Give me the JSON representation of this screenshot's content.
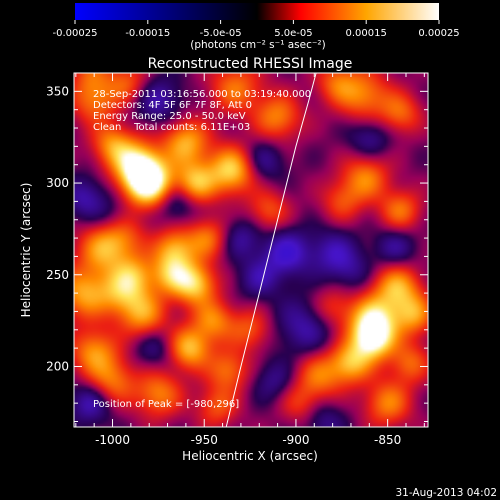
{
  "colorbar": {
    "ticks": [
      "-0.00025",
      "-0.00015",
      "-5.0e-05",
      "5.0e-05",
      "0.00015",
      "0.00025"
    ],
    "tick_values": [
      -0.00025,
      -0.00015,
      -5e-05,
      5e-05,
      0.00015,
      0.00025
    ],
    "range": [
      -0.00025,
      0.00025
    ],
    "units_label": "(photons cm⁻² s⁻¹ asec⁻²)",
    "colors": [
      "#0000ff",
      "#000000",
      "#ff0000",
      "#ffa500",
      "#ffffff"
    ]
  },
  "chart_data": {
    "type": "heatmap",
    "title": "Reconstructed RHESSI Image",
    "xlabel": "Heliocentric X (arcsec)",
    "ylabel": "Heliocentric Y (arcsec)",
    "xlim": [
      -1021,
      -828
    ],
    "ylim": [
      167,
      360
    ],
    "xticks": [
      -1000,
      -950,
      -900,
      -850
    ],
    "xtick_labels": [
      "-1000",
      "-950",
      "-900",
      "-850"
    ],
    "yticks": [
      200,
      250,
      300,
      350
    ],
    "ytick_labels": [
      "200",
      "250",
      "300",
      "350"
    ],
    "annotations": [
      "28-Sep-2011 03:16:56.000 to 03:19:40.000",
      "Detectors: 4F 5F 6F 7F 8F, Att 0",
      "Energy Range: 25.0 - 50.0 keV",
      "Clean    Total counts: 6.11E+03"
    ],
    "peak_label": "Position of Peak = [-980,296]",
    "peak": [
      -980,
      296
    ],
    "limb_curve": [
      [
        -938,
        167
      ],
      [
        -930,
        200
      ],
      [
        -920,
        240
      ],
      [
        -910,
        280
      ],
      [
        -900,
        320
      ],
      [
        -893,
        345
      ],
      [
        -889,
        360
      ]
    ],
    "blobs": [
      [
        -980,
        300,
        0.00025,
        9
      ],
      [
        -987,
        310,
        0.00019,
        9
      ],
      [
        -1000,
        321,
        0.00012,
        8
      ],
      [
        -955,
        300,
        0.00016,
        8
      ],
      [
        -960,
        322,
        0.00015,
        9
      ],
      [
        -935,
        307,
        0.00018,
        9
      ],
      [
        -948,
        270,
        0.00011,
        8
      ],
      [
        -966,
        264,
        0.00014,
        8
      ],
      [
        -915,
        285,
        9e-05,
        8
      ],
      [
        -933,
        352,
        0.00011,
        10
      ],
      [
        -910,
        336,
        0.00012,
        9
      ],
      [
        -863,
        348,
        0.00012,
        10
      ],
      [
        -878,
        355,
        9e-05,
        8
      ],
      [
        -843,
        338,
        0.0001,
        8
      ],
      [
        -862,
        303,
        0.00012,
        9
      ],
      [
        -875,
        290,
        8e-05,
        8
      ],
      [
        -843,
        285,
        0.00011,
        8
      ],
      [
        -1005,
        264,
        0.00013,
        10
      ],
      [
        -995,
        272,
        9e-05,
        9
      ],
      [
        -1016,
        240,
        0.00014,
        10
      ],
      [
        -995,
        240,
        0.00012,
        9
      ],
      [
        -1010,
        208,
        0.00013,
        9
      ],
      [
        -1000,
        192,
        0.00011,
        9
      ],
      [
        -975,
        185,
        0.00012,
        9
      ],
      [
        -955,
        245,
        0.00017,
        8
      ],
      [
        -968,
        250,
        0.00013,
        8
      ],
      [
        -945,
        225,
        0.00012,
        8
      ],
      [
        -983,
        228,
        0.00013,
        9
      ],
      [
        -988,
        250,
        0.00011,
        8
      ],
      [
        -937,
        198,
        0.00011,
        8
      ],
      [
        -925,
        220,
        9e-05,
        8
      ],
      [
        -958,
        210,
        0.00016,
        8
      ],
      [
        -943,
        178,
        9e-05,
        8
      ],
      [
        -845,
        243,
        0.00015,
        9
      ],
      [
        -836,
        228,
        0.00013,
        8
      ],
      [
        -858,
        226,
        0.00017,
        9
      ],
      [
        -858,
        215,
        0.00021,
        8
      ],
      [
        -870,
        202,
        0.00015,
        8
      ],
      [
        -887,
        195,
        0.00011,
        9
      ],
      [
        -898,
        180,
        7e-05,
        8
      ],
      [
        -850,
        180,
        0.00012,
        9
      ],
      [
        -838,
        202,
        0.0001,
        8
      ],
      [
        -880,
        232,
        8e-05,
        8
      ],
      [
        -1010,
        345,
        0.00011,
        9
      ],
      [
        -992,
        355,
        9e-05,
        8
      ],
      [
        -1012,
        360,
        7e-05,
        8
      ],
      [
        -895,
        222,
        -8e-05,
        11
      ],
      [
        -905,
        262,
        -0.00011,
        9
      ],
      [
        -880,
        262,
        -8e-05,
        9
      ],
      [
        -920,
        248,
        -7e-05,
        8
      ],
      [
        -975,
        345,
        -8e-05,
        9
      ],
      [
        -1015,
        292,
        -8e-05,
        8
      ],
      [
        -1012,
        180,
        -9e-05,
        8
      ],
      [
        -965,
        290,
        -8e-05,
        8
      ],
      [
        -1000,
        280,
        -6e-05,
        8
      ],
      [
        -930,
        270,
        -7e-05,
        8
      ],
      [
        -860,
        325,
        -7e-05,
        8
      ],
      [
        -846,
        265,
        -7e-05,
        8
      ],
      [
        -912,
        192,
        -6e-05,
        8
      ],
      [
        -885,
        170,
        -6e-05,
        8
      ],
      [
        -918,
        312,
        -7e-05,
        8
      ],
      [
        -977,
        210,
        -6e-05,
        8
      ],
      [
        -870,
        252,
        -5e-05,
        8
      ]
    ]
  },
  "footer": {
    "date": "31-Aug-2013 04:02"
  }
}
